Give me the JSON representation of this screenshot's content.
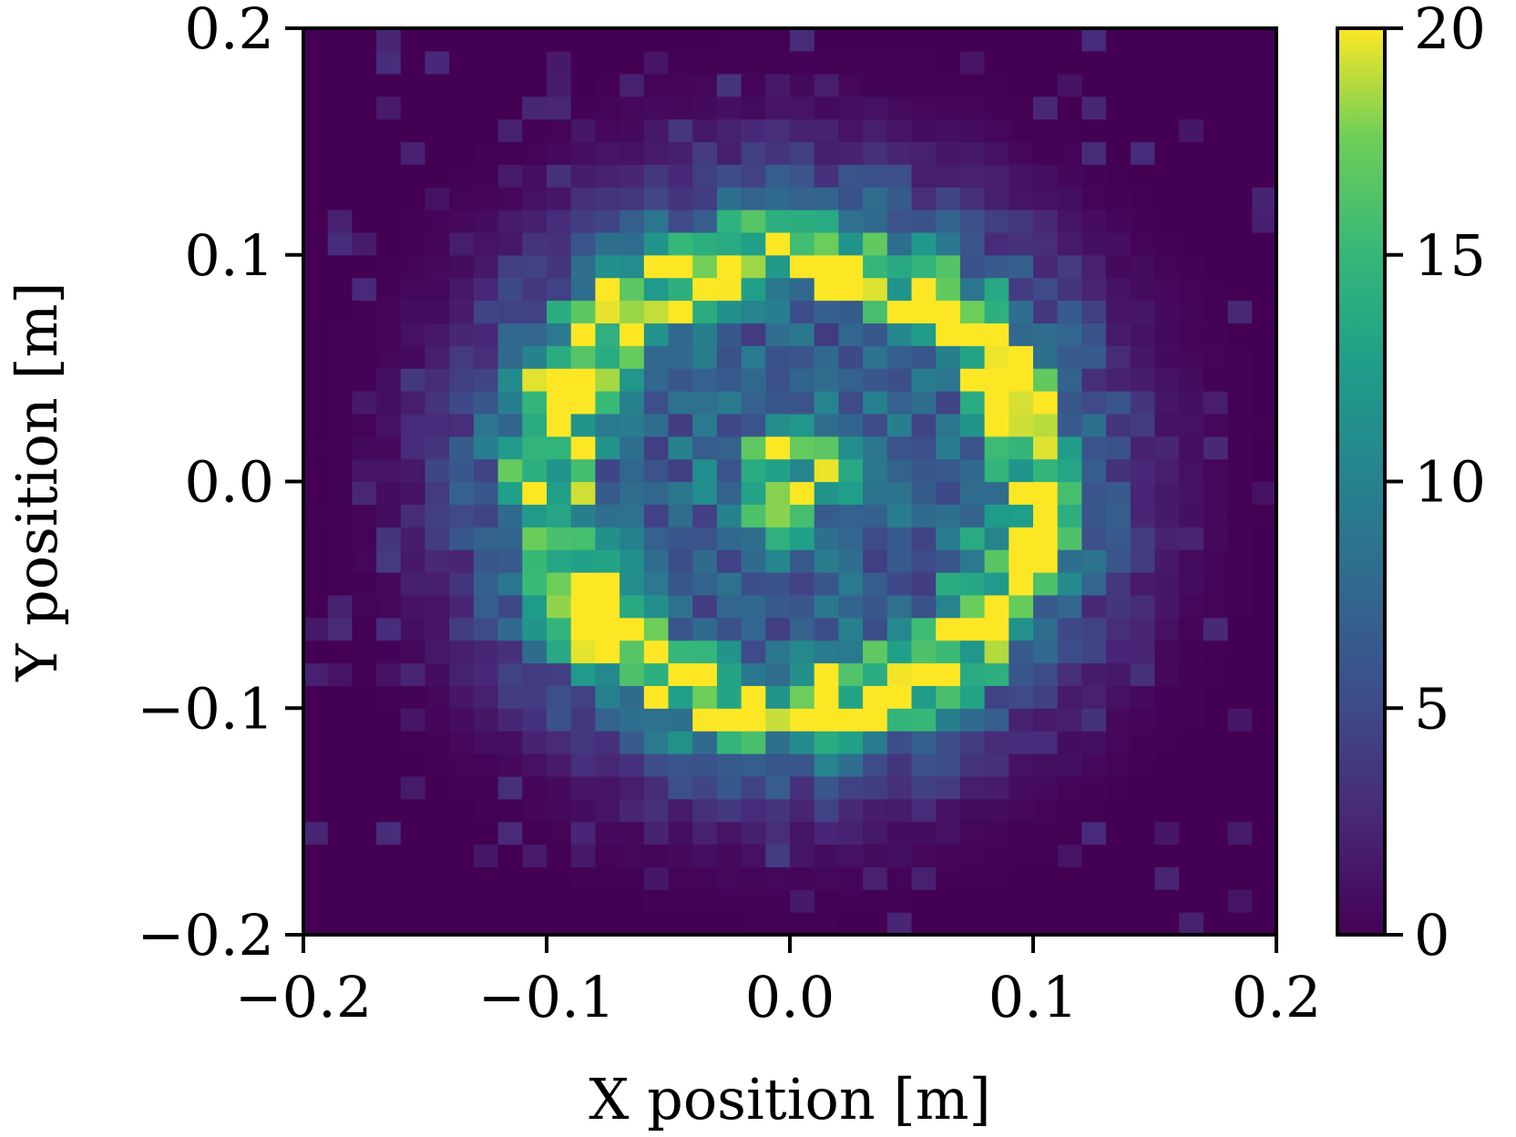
{
  "chart_data": {
    "type": "heatmap",
    "title": "",
    "xlabel": "X position [m]",
    "ylabel": "Y position [m]",
    "xlim": [
      -0.2,
      0.2
    ],
    "ylim": [
      -0.2,
      0.2
    ],
    "x_ticks": [
      -0.2,
      -0.1,
      0.0,
      0.1,
      0.2
    ],
    "x_tick_labels": [
      "−0.2",
      "−0.1",
      "0.0",
      "0.1",
      "0.2"
    ],
    "y_ticks": [
      -0.2,
      -0.1,
      0.0,
      0.1,
      0.2
    ],
    "y_tick_labels": [
      "−0.2",
      "−0.1",
      "0.0",
      "0.1",
      "0.2"
    ],
    "grid": false,
    "bins": [
      40,
      40
    ],
    "colormap": "viridis",
    "colorbar": {
      "min": 0,
      "max": 20,
      "ticks": [
        0,
        5,
        10,
        15,
        20
      ],
      "tick_labels": [
        "0",
        "5",
        "10",
        "15",
        "20"
      ],
      "placement": "right"
    },
    "distribution_summary": {
      "center_peak_value": 20,
      "ring_radius_m": 0.1,
      "ring_peak_value": 20,
      "background_value": 0
    }
  },
  "colors": {
    "viridis_0": "#440154",
    "viridis_25": "#3b528b",
    "viridis_50": "#21918c",
    "viridis_75": "#5ec962",
    "viridis_100": "#fde725",
    "axis": "#000000"
  }
}
